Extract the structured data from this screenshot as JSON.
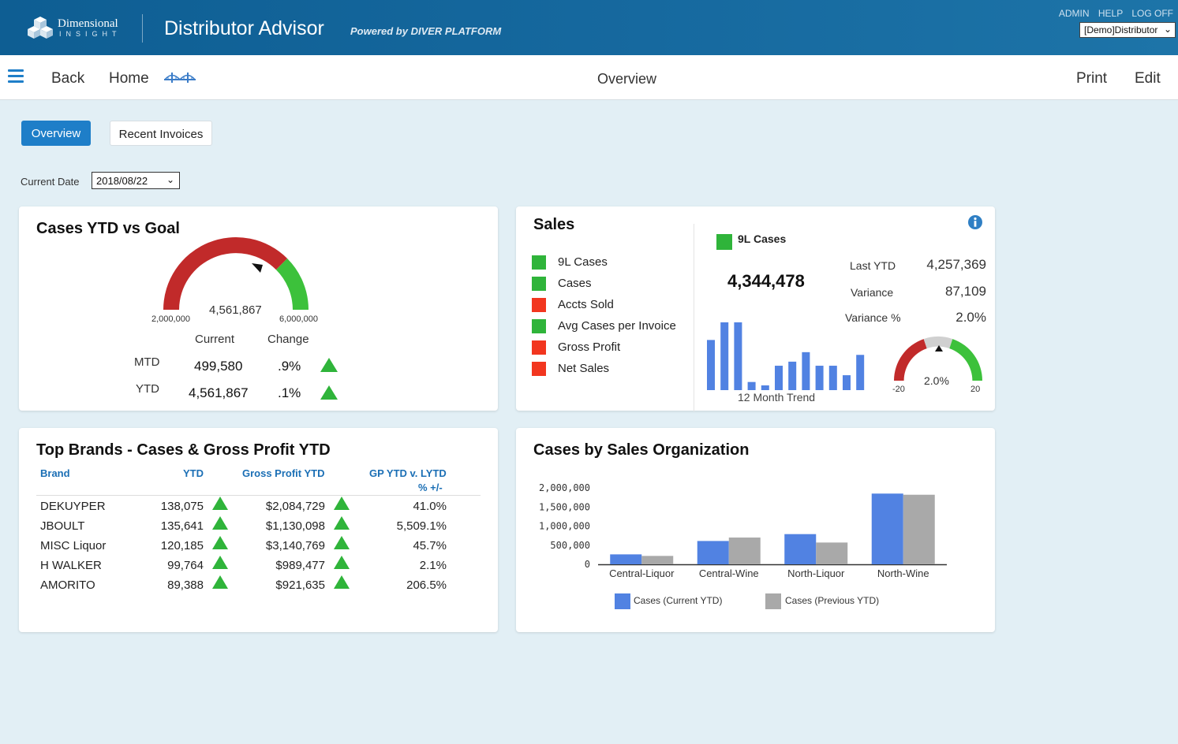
{
  "header": {
    "logo_line1": "Dimensional",
    "logo_line2": "INSIGHT",
    "app_title": "Distributor Advisor",
    "powered_by": "Powered by DIVER PLATFORM",
    "links": [
      "ADMIN",
      "HELP",
      "LOG OFF"
    ],
    "profile_value": "[Demo]Distributor"
  },
  "nav": {
    "back_label": "Back",
    "home_label": "Home",
    "center_title": "Overview",
    "print_label": "Print",
    "edit_label": "Edit"
  },
  "tabs": [
    {
      "label": "Overview",
      "active": true
    },
    {
      "label": "Recent Invoices",
      "active": false
    }
  ],
  "filter": {
    "date_label": "Current Date",
    "date_value": "2018/08/22"
  },
  "cases_ytd": {
    "title": "Cases YTD vs Goal",
    "gauge": {
      "min_label": "2,000,000",
      "max_label": "6,000,000",
      "value_label": "4,561,867",
      "min": 2000000,
      "max": 6000000,
      "value": 4561867,
      "goal_start": 5000000
    },
    "col_current": "Current",
    "col_change": "Change",
    "rows": [
      {
        "label": "MTD",
        "current": "499,580",
        "change": ".9%",
        "trend": "up"
      },
      {
        "label": "YTD",
        "current": "4,561,867",
        "change": ".1%",
        "trend": "up"
      }
    ],
    "colors": {
      "red": "#c12a2a",
      "green": "#3cc13b"
    }
  },
  "sales": {
    "title": "Sales",
    "info_icon": "info-icon",
    "legend": [
      {
        "label": "9L Cases",
        "color": "#2fb43a"
      },
      {
        "label": "Cases",
        "color": "#2fb43a"
      },
      {
        "label": "Accts Sold",
        "color": "#f2361f"
      },
      {
        "label": "Avg Cases per Invoice",
        "color": "#2fb43a"
      },
      {
        "label": "Gross Profit",
        "color": "#f2361f"
      },
      {
        "label": "Net Sales",
        "color": "#f2361f"
      }
    ],
    "selected_label": "9L Cases",
    "selected_color": "#2fb43a",
    "big_value": "4,344,478",
    "last_ytd_label": "Last YTD",
    "last_ytd_value": "4,257,369",
    "variance_label": "Variance",
    "variance_value": "87,109",
    "variance_pct_label": "Variance %",
    "variance_pct_value": "2.0%",
    "trend_label": "12 Month Trend",
    "trend_values": [
      0.74,
      1.0,
      1.0,
      0.12,
      0.07,
      0.36,
      0.42,
      0.56,
      0.36,
      0.36,
      0.22,
      0.52
    ],
    "mini_gauge": {
      "min_label": "-20",
      "max_label": "20",
      "value_label": "2.0%",
      "min": -20,
      "max": 20,
      "value": 2.0
    }
  },
  "top_brands": {
    "title": "Top Brands - Cases & Gross Profit YTD",
    "headers": {
      "brand": "Brand",
      "ytd": "YTD",
      "gp": "Gross Profit YTD",
      "gp_vs_line1": "GP YTD v. LYTD",
      "gp_vs_line2": "% +/-"
    },
    "rows": [
      {
        "brand": "DEKUYPER",
        "ytd": "138,075",
        "gp": "$2,084,729",
        "pct": "41.0%"
      },
      {
        "brand": "JBOULT",
        "ytd": "135,641",
        "gp": "$1,130,098",
        "pct": "5,509.1%"
      },
      {
        "brand": "MISC Liquor",
        "ytd": "120,185",
        "gp": "$3,140,769",
        "pct": "45.7%"
      },
      {
        "brand": "H WALKER",
        "ytd": "99,764",
        "gp": "$989,477",
        "pct": "2.1%"
      },
      {
        "brand": "AMORITO",
        "ytd": "89,388",
        "gp": "$921,635",
        "pct": "206.5%"
      }
    ]
  },
  "cases_by_org": {
    "title": "Cases by Sales Organization",
    "legend_current": "Cases (Current YTD)",
    "legend_previous": "Cases (Previous YTD)",
    "color_current": "#5182e2",
    "color_previous": "#a9a9a9"
  },
  "chart_data": {
    "type": "bar",
    "title": "Cases by Sales Organization",
    "categories": [
      "Central-Liquor",
      "Central-Wine",
      "North-Liquor",
      "North-Wine"
    ],
    "series": [
      {
        "name": "Cases (Current YTD)",
        "values": [
          260000,
          610000,
          790000,
          1850000
        ]
      },
      {
        "name": "Cases (Previous YTD)",
        "values": [
          220000,
          700000,
          570000,
          1820000
        ]
      }
    ],
    "ylim": [
      0,
      2000000
    ],
    "yticks": [
      "0",
      "500,000",
      "1,000,000",
      "1,500,000",
      "2,000,000"
    ],
    "ytick_values": [
      0,
      500000,
      1000000,
      1500000,
      2000000
    ],
    "xlabel": "",
    "ylabel": "",
    "legend_position": "bottom",
    "grid": false
  }
}
